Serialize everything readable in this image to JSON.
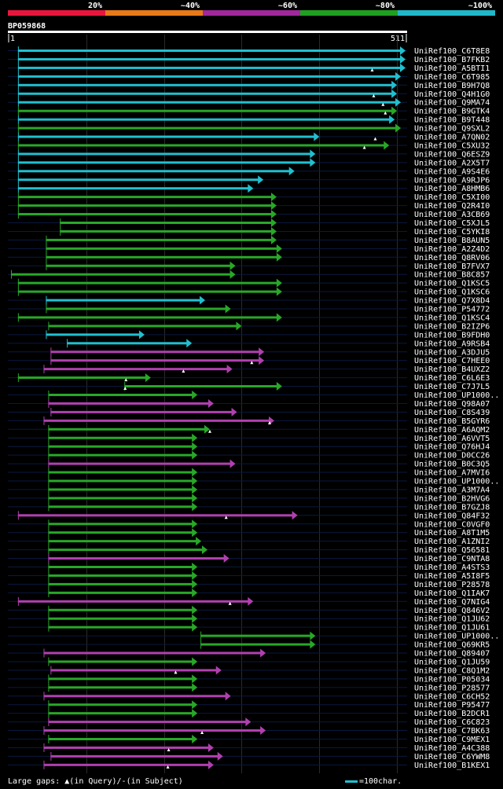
{
  "chart_data": {
    "type": "alignment-overview",
    "query_id": "BP059868",
    "query_length": 511,
    "axis": {
      "start_label": "1",
      "end_label": "511",
      "min": 1,
      "max": 511
    },
    "identity_legend": [
      {
        "label": "20%",
        "color": "#e8163c"
      },
      {
        "label": "~40%",
        "color": "#e87a18"
      },
      {
        "label": "~60%",
        "color": "#a0289c"
      },
      {
        "label": "~80%",
        "color": "#20a020"
      },
      {
        "label": "~100%",
        "color": "#20b8c8"
      }
    ],
    "colors": {
      "cyan": "#20c0d0",
      "green": "#28a828",
      "purple": "#b040b0",
      "marker": "#ffffff",
      "track": "#0a1840"
    },
    "hits": [
      {
        "name": "UniRef100_C6T8E8",
        "start": 12,
        "end": 511,
        "class": "cyan"
      },
      {
        "name": "UniRef100_B7FKB2",
        "start": 12,
        "end": 511,
        "class": "cyan"
      },
      {
        "name": "UniRef100_A5BTI1",
        "start": 12,
        "end": 511,
        "class": "cyan"
      },
      {
        "name": "UniRef100_C6T985",
        "start": 12,
        "end": 505,
        "class": "cyan"
      },
      {
        "name": "UniRef100_B9H7Q8",
        "start": 12,
        "end": 500,
        "class": "cyan"
      },
      {
        "name": "UniRef100_Q4H1G0",
        "start": 12,
        "end": 500,
        "class": "cyan"
      },
      {
        "name": "UniRef100_Q9MA74",
        "start": 12,
        "end": 505,
        "class": "cyan"
      },
      {
        "name": "UniRef100_B9GTK4",
        "start": 12,
        "end": 500,
        "class": "green"
      },
      {
        "name": "UniRef100_B9T448",
        "start": 12,
        "end": 497,
        "class": "cyan"
      },
      {
        "name": "UniRef100_Q9SXL2",
        "start": 12,
        "end": 505,
        "class": "green"
      },
      {
        "name": "UniRef100_A7QN02",
        "start": 12,
        "end": 400,
        "class": "cyan"
      },
      {
        "name": "UniRef100_C5XU32",
        "start": 12,
        "end": 490,
        "class": "green"
      },
      {
        "name": "UniRef100_Q6ESZ9",
        "start": 12,
        "end": 395,
        "class": "cyan"
      },
      {
        "name": "UniRef100_A2X5T7",
        "start": 12,
        "end": 395,
        "class": "cyan"
      },
      {
        "name": "UniRef100_A9S4E6",
        "start": 12,
        "end": 368,
        "class": "cyan"
      },
      {
        "name": "UniRef100_A9RJP6",
        "start": 12,
        "end": 328,
        "class": "cyan"
      },
      {
        "name": "UniRef100_A8HMB6",
        "start": 12,
        "end": 315,
        "class": "cyan"
      },
      {
        "name": "UniRef100_C5XI00",
        "start": 12,
        "end": 345,
        "class": "green"
      },
      {
        "name": "UniRef100_Q2R4I0",
        "start": 12,
        "end": 345,
        "class": "green"
      },
      {
        "name": "UniRef100_A3CB69",
        "start": 12,
        "end": 345,
        "class": "green"
      },
      {
        "name": "UniRef100_C5XJL5",
        "start": 66,
        "end": 345,
        "class": "green"
      },
      {
        "name": "UniRef100_C5YKI8",
        "start": 66,
        "end": 345,
        "class": "green"
      },
      {
        "name": "UniRef100_B8AUN5",
        "start": 48,
        "end": 345,
        "class": "green"
      },
      {
        "name": "UniRef100_A2Z4D2",
        "start": 48,
        "end": 352,
        "class": "green"
      },
      {
        "name": "UniRef100_Q8RV06",
        "start": 48,
        "end": 352,
        "class": "green"
      },
      {
        "name": "UniRef100_B7FVX7",
        "start": 48,
        "end": 292,
        "class": "green"
      },
      {
        "name": "UniRef100_B8C857",
        "start": 3,
        "end": 292,
        "class": "green"
      },
      {
        "name": "UniRef100_Q1KSC5",
        "start": 12,
        "end": 352,
        "class": "green"
      },
      {
        "name": "UniRef100_Q1KSC6",
        "start": 12,
        "end": 352,
        "class": "green"
      },
      {
        "name": "UniRef100_Q7X8D4",
        "start": 48,
        "end": 253,
        "class": "cyan"
      },
      {
        "name": "UniRef100_P54772",
        "start": 48,
        "end": 286,
        "class": "green"
      },
      {
        "name": "UniRef100_Q1KSC4",
        "start": 12,
        "end": 352,
        "class": "green"
      },
      {
        "name": "UniRef100_B2IZP6",
        "start": 51,
        "end": 300,
        "class": "green"
      },
      {
        "name": "UniRef100_B9FDH0",
        "start": 48,
        "end": 175,
        "class": "cyan"
      },
      {
        "name": "UniRef100_A9RSB4",
        "start": 75,
        "end": 236,
        "class": "cyan"
      },
      {
        "name": "UniRef100_A3DJU5",
        "start": 54,
        "end": 329,
        "class": "purple"
      },
      {
        "name": "UniRef100_C7HEE0",
        "start": 54,
        "end": 329,
        "class": "purple"
      },
      {
        "name": "UniRef100_B4UXZ2",
        "start": 45,
        "end": 288,
        "class": "purple"
      },
      {
        "name": "UniRef100_C6L6E3",
        "start": 12,
        "end": 183,
        "class": "green"
      },
      {
        "name": "UniRef100_C7J7L5",
        "start": 149,
        "end": 352,
        "class": "green"
      },
      {
        "name": "UniRef100_UP1000..",
        "start": 51,
        "end": 243,
        "class": "green"
      },
      {
        "name": "UniRef100_Q98A07",
        "start": 51,
        "end": 264,
        "class": "purple"
      },
      {
        "name": "UniRef100_C8S439",
        "start": 54,
        "end": 294,
        "class": "purple"
      },
      {
        "name": "UniRef100_B5GYR6",
        "start": 45,
        "end": 342,
        "class": "purple"
      },
      {
        "name": "UniRef100_A6AQM2",
        "start": 51,
        "end": 259,
        "class": "green"
      },
      {
        "name": "UniRef100_A6VVT5",
        "start": 51,
        "end": 243,
        "class": "green"
      },
      {
        "name": "UniRef100_Q76HJ4",
        "start": 51,
        "end": 243,
        "class": "green"
      },
      {
        "name": "UniRef100_D0CC26",
        "start": 51,
        "end": 243,
        "class": "green"
      },
      {
        "name": "UniRef100_B0C3Q5",
        "start": 51,
        "end": 292,
        "class": "purple"
      },
      {
        "name": "UniRef100_A7MVI6",
        "start": 51,
        "end": 243,
        "class": "green"
      },
      {
        "name": "UniRef100_UP1000..",
        "start": 51,
        "end": 243,
        "class": "green"
      },
      {
        "name": "UniRef100_A3M7A4",
        "start": 51,
        "end": 243,
        "class": "green"
      },
      {
        "name": "UniRef100_B2HVG6",
        "start": 51,
        "end": 243,
        "class": "green"
      },
      {
        "name": "UniRef100_B7GZJ8",
        "start": 51,
        "end": 243,
        "class": "green"
      },
      {
        "name": "UniRef100_Q84F32",
        "start": 12,
        "end": 372,
        "class": "purple"
      },
      {
        "name": "UniRef100_C0VGF0",
        "start": 51,
        "end": 243,
        "class": "green"
      },
      {
        "name": "UniRef100_A8T1M5",
        "start": 51,
        "end": 243,
        "class": "green"
      },
      {
        "name": "UniRef100_A1ZNI2",
        "start": 51,
        "end": 248,
        "class": "green"
      },
      {
        "name": "UniRef100_Q56581",
        "start": 51,
        "end": 256,
        "class": "green"
      },
      {
        "name": "UniRef100_C9NTA8",
        "start": 51,
        "end": 284,
        "class": "purple"
      },
      {
        "name": "UniRef100_A4STS3",
        "start": 51,
        "end": 243,
        "class": "green"
      },
      {
        "name": "UniRef100_A5I8F5",
        "start": 51,
        "end": 243,
        "class": "green"
      },
      {
        "name": "UniRef100_P28578",
        "start": 51,
        "end": 243,
        "class": "green"
      },
      {
        "name": "UniRef100_Q1IAK7",
        "start": 51,
        "end": 243,
        "class": "green"
      },
      {
        "name": "UniRef100_Q7NIG4",
        "start": 12,
        "end": 315,
        "class": "purple"
      },
      {
        "name": "UniRef100_Q846V2",
        "start": 51,
        "end": 243,
        "class": "green"
      },
      {
        "name": "UniRef100_Q1JU62",
        "start": 51,
        "end": 243,
        "class": "green"
      },
      {
        "name": "UniRef100_Q1JU61",
        "start": 51,
        "end": 243,
        "class": "green"
      },
      {
        "name": "UniRef100_UP1000..",
        "start": 247,
        "end": 395,
        "class": "green"
      },
      {
        "name": "UniRef100_Q69KR5",
        "start": 247,
        "end": 395,
        "class": "green"
      },
      {
        "name": "UniRef100_Q89407",
        "start": 45,
        "end": 331,
        "class": "purple"
      },
      {
        "name": "UniRef100_Q1JU59",
        "start": 51,
        "end": 243,
        "class": "green"
      },
      {
        "name": "UniRef100_C8Q1M2",
        "start": 54,
        "end": 274,
        "class": "purple"
      },
      {
        "name": "UniRef100_P05034",
        "start": 51,
        "end": 243,
        "class": "green"
      },
      {
        "name": "UniRef100_P28577",
        "start": 51,
        "end": 243,
        "class": "green"
      },
      {
        "name": "UniRef100_C6CH52",
        "start": 45,
        "end": 286,
        "class": "purple"
      },
      {
        "name": "UniRef100_P95477",
        "start": 51,
        "end": 243,
        "class": "green"
      },
      {
        "name": "UniRef100_B2DCR1",
        "start": 51,
        "end": 243,
        "class": "green"
      },
      {
        "name": "UniRef100_C6C823",
        "start": 51,
        "end": 312,
        "class": "purple"
      },
      {
        "name": "UniRef100_C7BK63",
        "start": 45,
        "end": 331,
        "class": "purple"
      },
      {
        "name": "UniRef100_C9MEX1",
        "start": 51,
        "end": 243,
        "class": "green"
      },
      {
        "name": "UniRef100_A4C388",
        "start": 45,
        "end": 264,
        "class": "purple"
      },
      {
        "name": "UniRef100_C6YWM8",
        "start": 54,
        "end": 276,
        "class": "purple"
      },
      {
        "name": "UniRef100_B1KEX1",
        "start": 45,
        "end": 264,
        "class": "purple"
      }
    ],
    "gap_markers": [
      {
        "row": 2,
        "pos": 468
      },
      {
        "row": 5,
        "pos": 470
      },
      {
        "row": 6,
        "pos": 482
      },
      {
        "row": 7,
        "pos": 485
      },
      {
        "row": 11,
        "pos": 458
      },
      {
        "row": 10,
        "pos": 472
      },
      {
        "row": 36,
        "pos": 313
      },
      {
        "row": 37,
        "pos": 225
      },
      {
        "row": 38,
        "pos": 151
      },
      {
        "row": 39,
        "pos": 150
      },
      {
        "row": 43,
        "pos": 336
      },
      {
        "row": 44,
        "pos": 259
      },
      {
        "row": 54,
        "pos": 280
      },
      {
        "row": 64,
        "pos": 285
      },
      {
        "row": 72,
        "pos": 215
      },
      {
        "row": 79,
        "pos": 249
      },
      {
        "row": 81,
        "pos": 206
      },
      {
        "row": 83,
        "pos": 205
      }
    ]
  },
  "legend": {
    "gaps_prefix": "Large gaps:",
    "gaps_query": "(in Query)/",
    "gaps_subject": "(in Subject)",
    "scale_label": "=100char."
  }
}
